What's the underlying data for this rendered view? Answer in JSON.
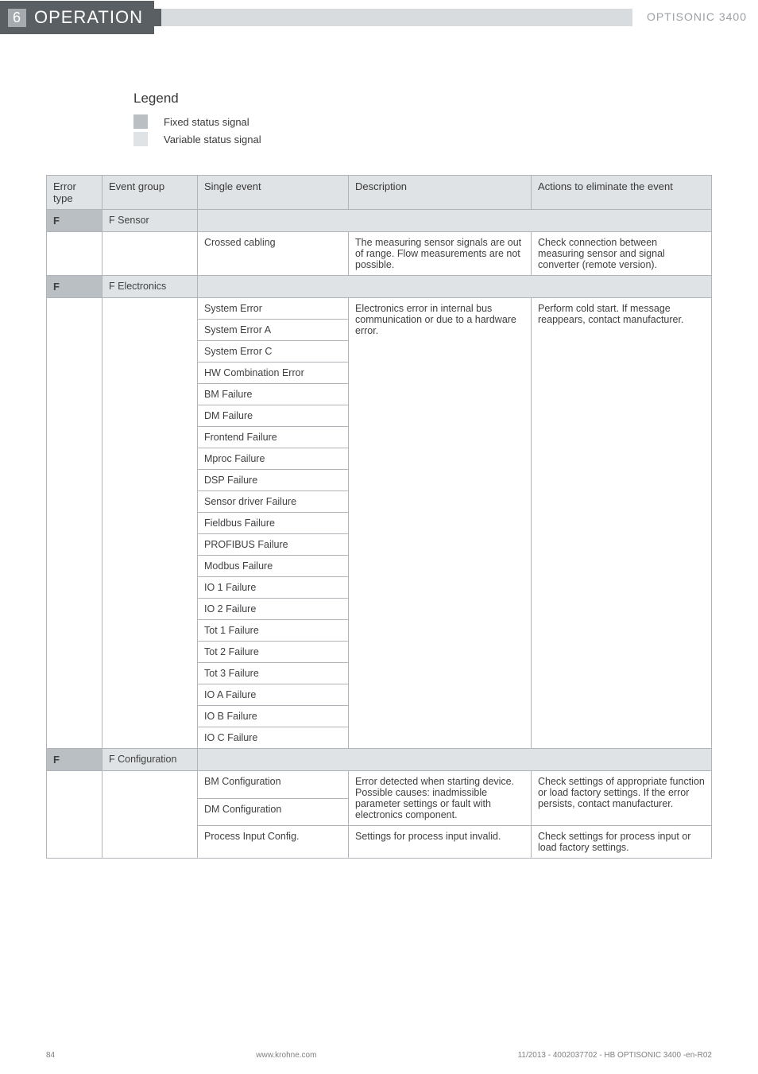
{
  "header": {
    "section_num": "6",
    "section_title": "OPERATION",
    "product": "OPTISONIC 3400"
  },
  "legend": {
    "title": "Legend",
    "fixed": "Fixed status signal",
    "variable": "Variable status signal"
  },
  "table": {
    "headers": {
      "error_type": "Error type",
      "event_group": "Event group",
      "single_event": "Single event",
      "description": "Description",
      "actions": "Actions to eliminate the event"
    },
    "groups": [
      {
        "flag": "F",
        "group": "F Sensor",
        "rows": [
          {
            "single": "Crossed cabling",
            "desc": "The measuring sensor signals are out of range. Flow measurements are not possible.",
            "act": "Check connection between measuring sensor and signal converter (remote version)."
          }
        ]
      },
      {
        "flag": "F",
        "group": "F Electronics",
        "shared_desc": "Electronics error in internal bus communication or due to a hardware error.",
        "shared_act": "Perform cold start. If message reappears, contact manufacturer.",
        "rows": [
          {
            "single": "System Error"
          },
          {
            "single": "System Error A"
          },
          {
            "single": "System Error C"
          },
          {
            "single": "HW Combination Error"
          },
          {
            "single": "BM Failure"
          },
          {
            "single": "DM Failure"
          },
          {
            "single": "Frontend Failure"
          },
          {
            "single": "Mproc Failure"
          },
          {
            "single": "DSP Failure"
          },
          {
            "single": "Sensor driver Failure"
          },
          {
            "single": "Fieldbus Failure"
          },
          {
            "single": "PROFIBUS Failure"
          },
          {
            "single": "Modbus Failure"
          },
          {
            "single": "IO 1 Failure"
          },
          {
            "single": "IO 2 Failure"
          },
          {
            "single": "Tot 1 Failure"
          },
          {
            "single": "Tot 2 Failure"
          },
          {
            "single": "Tot 3 Failure"
          },
          {
            "single": "IO A Failure"
          },
          {
            "single": "IO B Failure"
          },
          {
            "single": "IO C Failure"
          }
        ]
      },
      {
        "flag": "F",
        "group": "F Configuration",
        "rows_cfg": [
          {
            "single": "BM Configuration",
            "desc": "Error detected when starting device. Possible causes: inadmissible parameter settings or fault with electronics component.",
            "act": "Check settings of appropriate function or load factory settings. If the error persists, contact manufacturer."
          },
          {
            "single": "DM Configuration"
          },
          {
            "single": "Process Input Config.",
            "desc": "Settings for process input invalid.",
            "act": "Check settings for process input or load factory settings."
          }
        ]
      }
    ]
  },
  "footer": {
    "page": "84",
    "url": "www.krohne.com",
    "ref": "11/2013 - 4002037702 - HB OPTISONIC 3400 -en-R02"
  }
}
